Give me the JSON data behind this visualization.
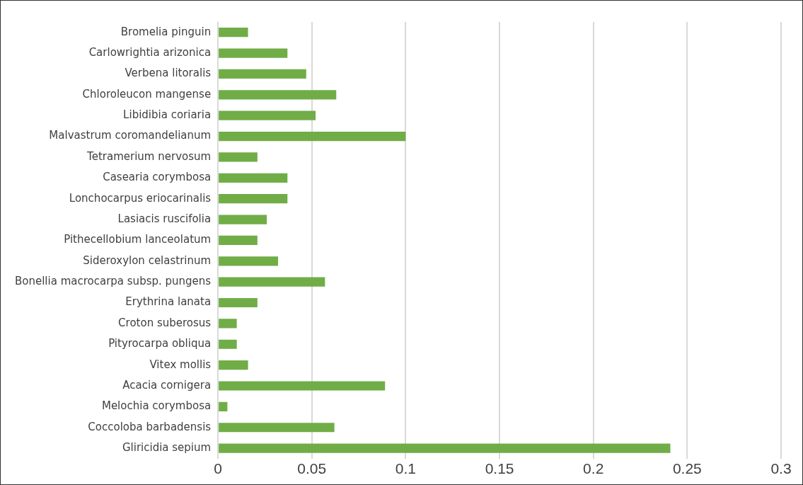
{
  "chart_data": {
    "type": "bar",
    "orientation": "horizontal",
    "categories": [
      "Bromelia pinguin",
      "Carlowrightia arizonica",
      "Verbena litoralis",
      "Chloroleucon mangense",
      "Libidibia coriaria",
      "Malvastrum coromandelianum",
      "Tetramerium nervosum",
      "Casearia corymbosa",
      "Lonchocarpus eriocarinalis",
      "Lasiacis ruscifolia",
      "Pithecellobium lanceolatum",
      "Sideroxylon celastrinum",
      "Bonellia macrocarpa subsp. pungens",
      "Erythrina lanata",
      "Croton suberosus",
      "Pityrocarpa obliqua",
      "Vitex mollis",
      "Acacia cornigera",
      "Melochia corymbosa",
      "Coccoloba barbadensis",
      "Gliricidia sepium"
    ],
    "values": [
      0.016,
      0.037,
      0.047,
      0.063,
      0.052,
      0.1,
      0.021,
      0.037,
      0.037,
      0.026,
      0.021,
      0.032,
      0.057,
      0.021,
      0.01,
      0.01,
      0.016,
      0.089,
      0.005,
      0.062,
      0.241
    ],
    "color": "#70ad47",
    "xlim": [
      0,
      0.3
    ],
    "xticks": [
      0,
      0.05,
      0.1,
      0.15,
      0.2,
      0.25,
      0.3
    ],
    "grid": "x"
  }
}
